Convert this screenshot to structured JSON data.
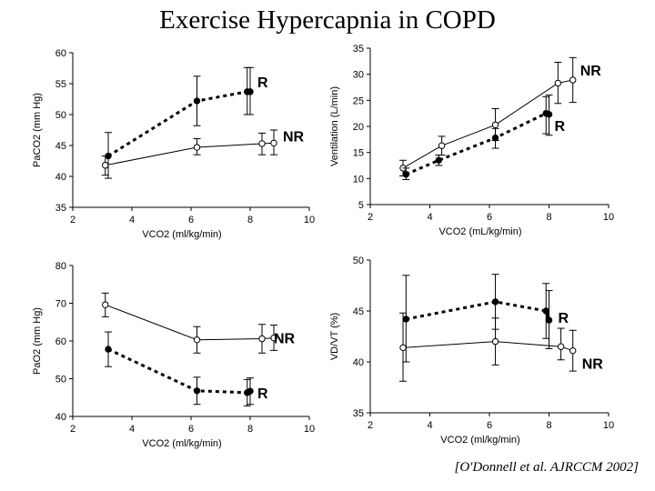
{
  "title": "Exercise Hypercapnia in COPD",
  "citation": "[O'Donnell et al. AJRCCM 2002]",
  "chart_data": [
    {
      "type": "line",
      "xlabel": "VCO2 (ml/kg/min)",
      "ylabel": "PaCO2 (mm Hg)",
      "xlim": [
        2,
        10
      ],
      "ylim": [
        35,
        60
      ],
      "xticks": [
        "2",
        "4",
        "6",
        "8",
        "10"
      ],
      "yticks": [
        "35",
        "40",
        "45",
        "50",
        "55",
        "60"
      ],
      "series": [
        {
          "name": "R",
          "style": "dashed",
          "marker": "filled",
          "points": [
            [
              3.2,
              43.3,
              39.7,
              47.1
            ],
            [
              6.2,
              52.2,
              48.2,
              56.2
            ],
            [
              7.9,
              53.7,
              50.0,
              57.6
            ],
            [
              8.0,
              53.7,
              50.0,
              57.6
            ]
          ]
        },
        {
          "name": "NR",
          "style": "solid",
          "marker": "open",
          "points": [
            [
              3.1,
              41.8,
              40.2,
              43.3
            ],
            [
              6.2,
              44.7,
              43.5,
              46.1
            ],
            [
              8.4,
              45.3,
              43.5,
              47.0
            ],
            [
              8.8,
              45.4,
              43.5,
              47.5
            ]
          ]
        }
      ]
    },
    {
      "type": "line",
      "xlabel": "VCO2 (mL/kg/min)",
      "ylabel": "Ventilation (L/min)",
      "xlim": [
        2,
        10
      ],
      "ylim": [
        5,
        35
      ],
      "xticks": [
        "2",
        "4",
        "6",
        "8",
        "10"
      ],
      "yticks": [
        "5",
        "10",
        "15",
        "20",
        "25",
        "30",
        "35"
      ],
      "series": [
        {
          "name": "NR",
          "style": "solid",
          "marker": "open",
          "points": [
            [
              3.1,
              12.0,
              10.5,
              13.5
            ],
            [
              4.4,
              16.3,
              14.5,
              18.1
            ],
            [
              6.2,
              20.3,
              17.3,
              23.4
            ],
            [
              8.3,
              28.3,
              24.4,
              32.3
            ],
            [
              8.8,
              28.9,
              24.6,
              33.2
            ]
          ]
        },
        {
          "name": "R",
          "style": "dashed",
          "marker": "filled",
          "points": [
            [
              3.2,
              10.8,
              9.8,
              12.0
            ],
            [
              4.3,
              13.5,
              12.5,
              14.5
            ],
            [
              6.2,
              17.8,
              15.8,
              19.6
            ],
            [
              7.9,
              22.5,
              18.6,
              25.7
            ],
            [
              8.0,
              22.3,
              18.3,
              26.0
            ]
          ]
        }
      ]
    },
    {
      "type": "line",
      "xlabel": "VCO2 (ml/kg/min)",
      "ylabel": "PaO2 (mm Hg)",
      "xlim": [
        2,
        10
      ],
      "ylim": [
        40,
        80
      ],
      "xticks": [
        "2",
        "4",
        "6",
        "8",
        "10"
      ],
      "yticks": [
        "40",
        "50",
        "60",
        "70",
        "80"
      ],
      "series": [
        {
          "name": "NR",
          "style": "solid",
          "marker": "open",
          "points": [
            [
              3.1,
              69.6,
              66.4,
              72.7
            ],
            [
              6.2,
              60.3,
              56.8,
              63.8
            ],
            [
              8.4,
              60.6,
              56.8,
              64.4
            ],
            [
              8.8,
              60.8,
              57.5,
              64.2
            ]
          ]
        },
        {
          "name": "R",
          "style": "dashed",
          "marker": "filled",
          "points": [
            [
              3.2,
              57.8,
              53.2,
              62.4
            ],
            [
              6.2,
              46.8,
              43.2,
              50.4
            ],
            [
              7.9,
              46.3,
              42.8,
              49.8
            ],
            [
              8.0,
              46.7,
              43.2,
              50.2
            ]
          ]
        }
      ]
    },
    {
      "type": "line",
      "xlabel": "VCO2 (ml/kg/min)",
      "ylabel": "VD/VT (%)",
      "xlim": [
        2,
        10
      ],
      "ylim": [
        35,
        50
      ],
      "xticks": [
        "2",
        "4",
        "6",
        "8",
        "10"
      ],
      "yticks": [
        "35",
        "40",
        "45",
        "50"
      ],
      "series": [
        {
          "name": "R",
          "style": "dashed",
          "marker": "filled",
          "points": [
            [
              3.2,
              44.2,
              40.0,
              48.5
            ],
            [
              6.2,
              45.9,
              43.2,
              48.6
            ],
            [
              7.9,
              45.0,
              42.3,
              47.7
            ],
            [
              8.0,
              44.1,
              41.3,
              47.0
            ]
          ]
        },
        {
          "name": "NR",
          "style": "solid",
          "marker": "open",
          "points": [
            [
              3.1,
              41.4,
              38.1,
              44.8
            ],
            [
              6.2,
              42.0,
              39.7,
              44.3
            ],
            [
              8.4,
              41.5,
              40.2,
              43.3
            ],
            [
              8.8,
              41.1,
              39.1,
              43.1
            ]
          ]
        }
      ]
    }
  ]
}
